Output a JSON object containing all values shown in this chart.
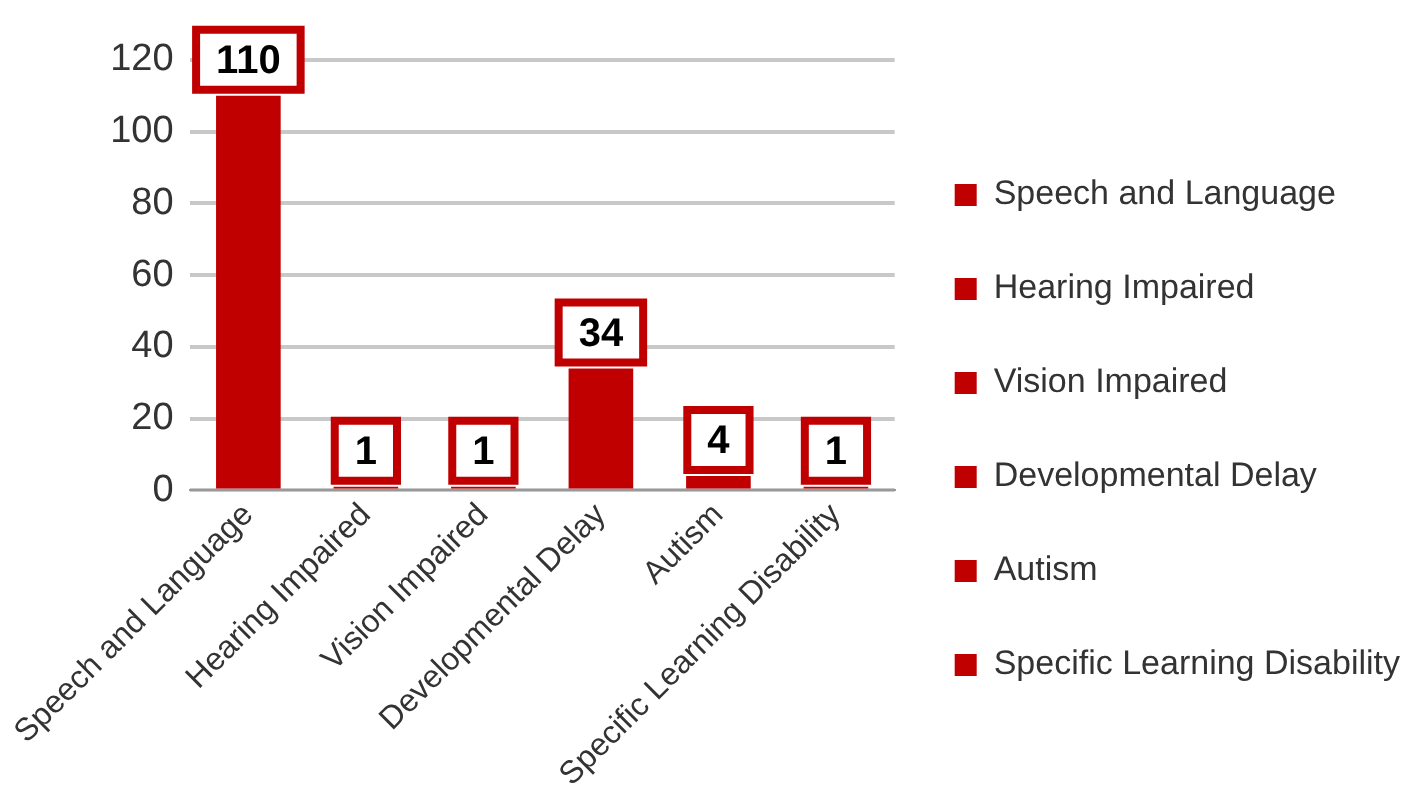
{
  "chart_data": {
    "type": "bar",
    "categories": [
      "Speech and Language",
      "Hearing Impaired",
      "Vision Impaired",
      "Developmental Delay",
      "Autism",
      "Specific Learning Disability"
    ],
    "series": [
      {
        "name": "Speech and Language",
        "color": "#c00000",
        "values": [
          110,
          null,
          null,
          null,
          null,
          null
        ]
      },
      {
        "name": "Hearing Impaired",
        "color": "#c00000",
        "values": [
          null,
          1,
          null,
          null,
          null,
          null
        ]
      },
      {
        "name": "Vision Impaired",
        "color": "#c00000",
        "values": [
          null,
          null,
          1,
          null,
          null,
          null
        ]
      },
      {
        "name": "Developmental Delay",
        "color": "#c00000",
        "values": [
          null,
          null,
          null,
          34,
          null,
          null
        ]
      },
      {
        "name": "Autism",
        "color": "#c00000",
        "values": [
          null,
          null,
          null,
          null,
          4,
          null
        ]
      },
      {
        "name": "Specific Learning Disability",
        "color": "#c00000",
        "values": [
          null,
          null,
          null,
          null,
          null,
          1
        ]
      }
    ],
    "ylim": [
      0,
      120
    ],
    "yticks": [
      0,
      20,
      40,
      60,
      80,
      100,
      120
    ],
    "grid": "y",
    "legend": "right",
    "data_labels": true
  }
}
